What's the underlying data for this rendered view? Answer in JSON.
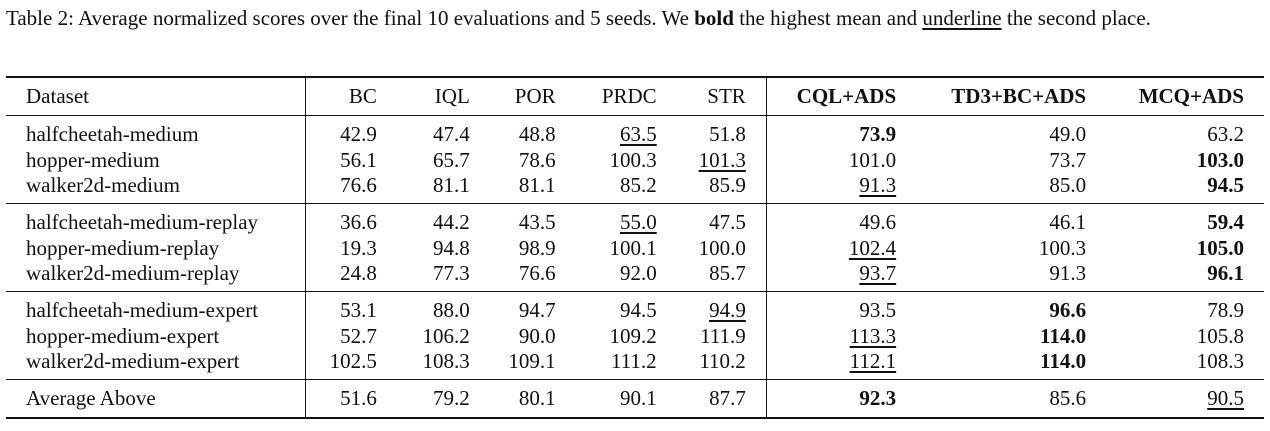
{
  "caption": {
    "part1": "Table 2: Average normalized scores over the final 10 evaluations and 5 seeds. We ",
    "bold_word": "bold",
    "part2": " the highest mean and ",
    "underline_word": "underline",
    "part3": " the second place."
  },
  "table": {
    "columns": [
      "Dataset",
      "BC",
      "IQL",
      "POR",
      "PRDC",
      "STR",
      "CQL+ADS",
      "TD3+BC+ADS",
      "MCQ+ADS"
    ],
    "groups": [
      {
        "rows": [
          {
            "dataset": "halfcheetah-medium",
            "values": [
              "42.9",
              "47.4",
              "48.8",
              "63.5",
              "51.8",
              "73.9",
              "49.0",
              "63.2"
            ],
            "best": 5,
            "second": 3
          },
          {
            "dataset": "hopper-medium",
            "values": [
              "56.1",
              "65.7",
              "78.6",
              "100.3",
              "101.3",
              "101.0",
              "73.7",
              "103.0"
            ],
            "best": 7,
            "second": 4
          },
          {
            "dataset": "walker2d-medium",
            "values": [
              "76.6",
              "81.1",
              "81.1",
              "85.2",
              "85.9",
              "91.3",
              "85.0",
              "94.5"
            ],
            "best": 7,
            "second": 5
          }
        ]
      },
      {
        "rows": [
          {
            "dataset": "halfcheetah-medium-replay",
            "values": [
              "36.6",
              "44.2",
              "43.5",
              "55.0",
              "47.5",
              "49.6",
              "46.1",
              "59.4"
            ],
            "best": 7,
            "second": 3
          },
          {
            "dataset": "hopper-medium-replay",
            "values": [
              "19.3",
              "94.8",
              "98.9",
              "100.1",
              "100.0",
              "102.4",
              "100.3",
              "105.0"
            ],
            "best": 7,
            "second": 5
          },
          {
            "dataset": "walker2d-medium-replay",
            "values": [
              "24.8",
              "77.3",
              "76.6",
              "92.0",
              "85.7",
              "93.7",
              "91.3",
              "96.1"
            ],
            "best": 7,
            "second": 5
          }
        ]
      },
      {
        "rows": [
          {
            "dataset": "halfcheetah-medium-expert",
            "values": [
              "53.1",
              "88.0",
              "94.7",
              "94.5",
              "94.9",
              "93.5",
              "96.6",
              "78.9"
            ],
            "best": 6,
            "second": 4
          },
          {
            "dataset": "hopper-medium-expert",
            "values": [
              "52.7",
              "106.2",
              "90.0",
              "109.2",
              "111.9",
              "113.3",
              "114.0",
              "105.8"
            ],
            "best": 6,
            "second": 5
          },
          {
            "dataset": "walker2d-medium-expert",
            "values": [
              "102.5",
              "108.3",
              "109.1",
              "111.2",
              "110.2",
              "112.1",
              "114.0",
              "108.3"
            ],
            "best": 6,
            "second": 5
          }
        ]
      }
    ],
    "average": {
      "dataset": "Average Above",
      "values": [
        "51.6",
        "79.2",
        "80.1",
        "90.1",
        "87.7",
        "92.3",
        "85.6",
        "90.5"
      ],
      "best": 5,
      "second": 7
    }
  }
}
